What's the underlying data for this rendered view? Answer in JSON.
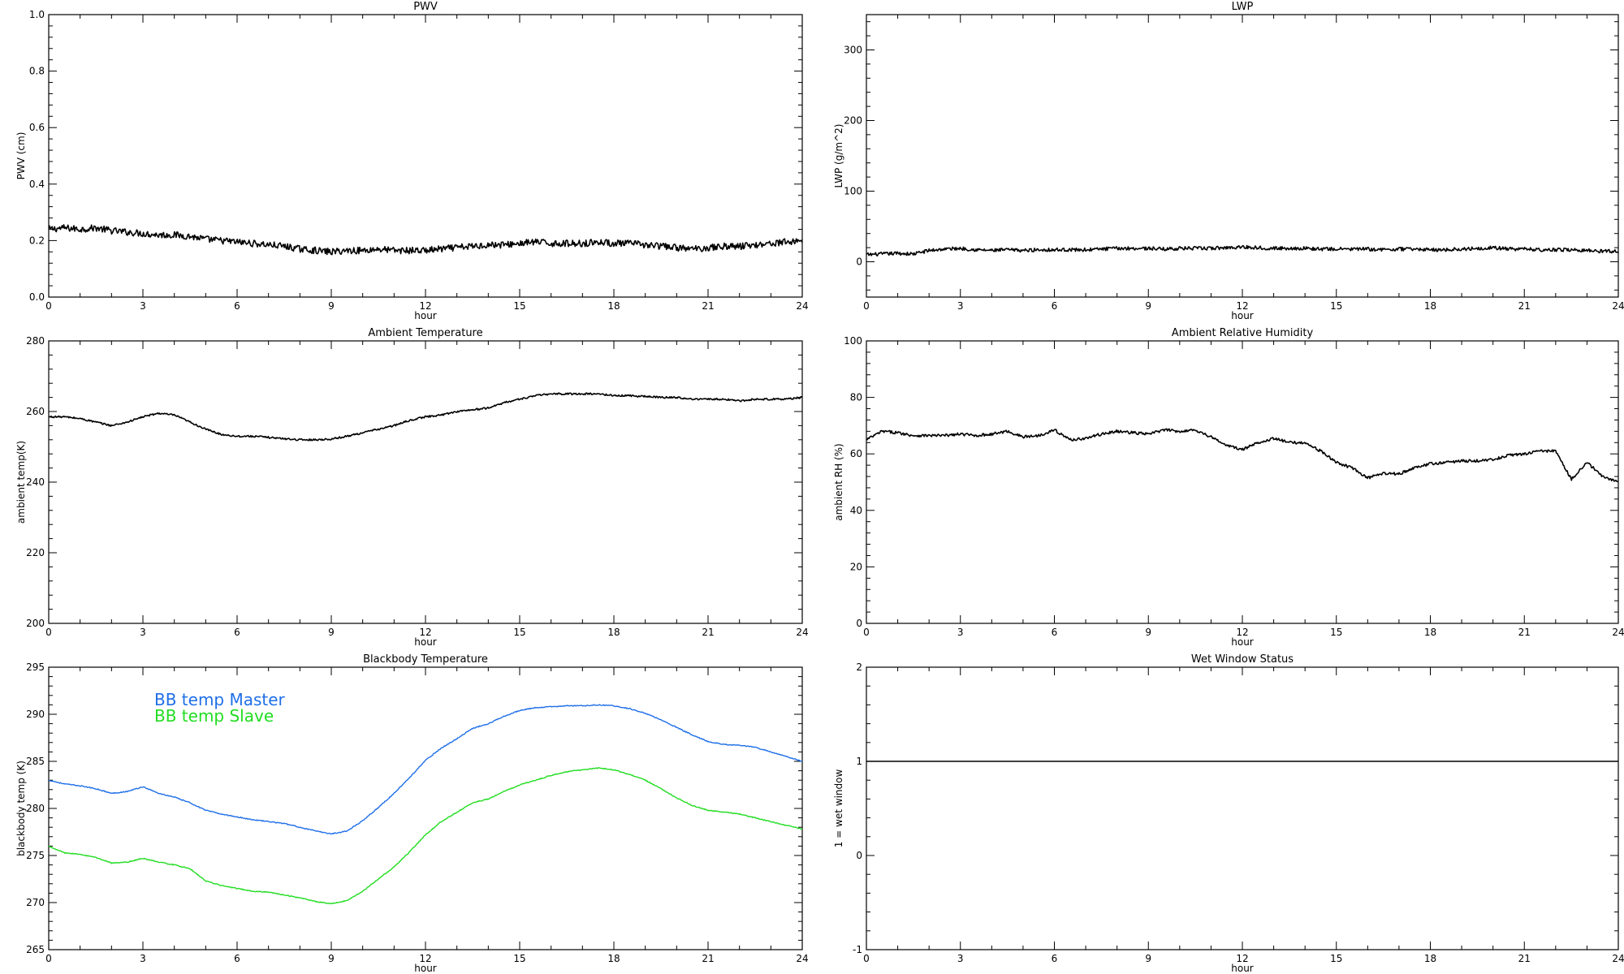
{
  "chart_data": [
    {
      "id": "pwv",
      "type": "line",
      "title": "PWV",
      "xlabel": "hour",
      "ylabel": "PWV (cm)",
      "xlim": [
        0,
        24
      ],
      "ylim": [
        0.0,
        1.0
      ],
      "xticks": [
        0,
        3,
        6,
        9,
        12,
        15,
        18,
        21,
        24
      ],
      "yticks": [
        0.0,
        0.2,
        0.4,
        0.6,
        0.8,
        1.0
      ],
      "ytick_labels": [
        "0.0",
        "0.2",
        "0.4",
        "0.6",
        "0.8",
        "1.0"
      ],
      "noise": 0.012,
      "series": [
        {
          "color": "#000000",
          "x": [
            0,
            0.5,
            1,
            1.5,
            2,
            2.5,
            3,
            3.5,
            4,
            4.5,
            5,
            5.5,
            6,
            6.5,
            7,
            7.5,
            8,
            8.5,
            9,
            9.5,
            10,
            10.5,
            11,
            11.5,
            12,
            12.5,
            13,
            13.5,
            14,
            14.5,
            15,
            15.5,
            16,
            16.5,
            17,
            17.5,
            18,
            18.5,
            19,
            19.5,
            20,
            20.5,
            21,
            21.5,
            22,
            22.5,
            23,
            23.5,
            24
          ],
          "y": [
            0.24,
            0.245,
            0.24,
            0.245,
            0.235,
            0.23,
            0.225,
            0.22,
            0.22,
            0.215,
            0.205,
            0.2,
            0.195,
            0.19,
            0.185,
            0.18,
            0.17,
            0.165,
            0.16,
            0.165,
            0.165,
            0.17,
            0.165,
            0.165,
            0.165,
            0.17,
            0.175,
            0.18,
            0.185,
            0.185,
            0.19,
            0.195,
            0.19,
            0.19,
            0.19,
            0.195,
            0.19,
            0.19,
            0.185,
            0.18,
            0.175,
            0.17,
            0.175,
            0.18,
            0.18,
            0.185,
            0.19,
            0.195,
            0.2
          ]
        }
      ]
    },
    {
      "id": "lwp",
      "type": "line",
      "title": "LWP",
      "xlabel": "hour",
      "ylabel": "LWP (g/m^2)",
      "xlim": [
        0,
        24
      ],
      "ylim": [
        -50,
        350
      ],
      "xticks": [
        0,
        3,
        6,
        9,
        12,
        15,
        18,
        21,
        24
      ],
      "yticks": [
        0,
        100,
        200,
        300
      ],
      "ytick_labels": [
        "0",
        "100",
        "200",
        "300"
      ],
      "noise": 2.5,
      "series": [
        {
          "color": "#000000",
          "x": [
            0,
            0.5,
            1,
            1.5,
            2,
            2.5,
            3,
            3.5,
            4,
            4.5,
            5,
            5.5,
            6,
            6.5,
            7,
            7.5,
            8,
            8.5,
            9,
            9.5,
            10,
            10.5,
            11,
            11.5,
            12,
            12.5,
            13,
            13.5,
            14,
            14.5,
            15,
            15.5,
            16,
            16.5,
            17,
            17.5,
            18,
            18.5,
            19,
            19.5,
            20,
            20.5,
            21,
            21.5,
            22,
            22.5,
            23,
            23.5,
            24
          ],
          "y": [
            10,
            11,
            12,
            11,
            16,
            18,
            19,
            17,
            16,
            17,
            16,
            17,
            17,
            17,
            17,
            18,
            19,
            19,
            19,
            18,
            19,
            19,
            19,
            20,
            21,
            20,
            19,
            19,
            19,
            18,
            18,
            18,
            18,
            17,
            18,
            18,
            17,
            17,
            18,
            19,
            20,
            18,
            18,
            17,
            17,
            17,
            16,
            15,
            15
          ]
        }
      ]
    },
    {
      "id": "ambient-temp",
      "type": "line",
      "title": "Ambient Temperature",
      "xlabel": "hour",
      "ylabel": "ambient temp(K)",
      "xlim": [
        0,
        24
      ],
      "ylim": [
        200,
        280
      ],
      "xticks": [
        0,
        3,
        6,
        9,
        12,
        15,
        18,
        21,
        24
      ],
      "yticks": [
        200,
        220,
        240,
        260,
        280
      ],
      "ytick_labels": [
        "200",
        "220",
        "240",
        "260",
        "280"
      ],
      "noise": 0.25,
      "series": [
        {
          "color": "#000000",
          "x": [
            0,
            0.5,
            1,
            1.5,
            2,
            2.5,
            3,
            3.5,
            4,
            4.5,
            5,
            5.5,
            6,
            6.5,
            7,
            7.5,
            8,
            8.5,
            9,
            9.5,
            10,
            10.5,
            11,
            11.5,
            12,
            12.5,
            13,
            13.5,
            14,
            14.5,
            15,
            15.5,
            16,
            16.5,
            17,
            17.5,
            18,
            18.5,
            19,
            19.5,
            20,
            20.5,
            21,
            21.5,
            22,
            22.5,
            23,
            23.5,
            24
          ],
          "y": [
            258.5,
            258.5,
            258,
            257,
            256,
            257,
            258.5,
            259.5,
            259,
            257,
            255,
            253.5,
            253,
            253,
            252.7,
            252.3,
            252,
            252,
            252.2,
            253,
            254,
            255,
            256,
            257.5,
            258.5,
            259,
            260,
            260.5,
            261,
            262.5,
            263.5,
            264.5,
            265,
            265,
            265,
            265,
            264.5,
            264.5,
            264.3,
            264,
            264,
            263.5,
            263.5,
            263.5,
            263,
            263.5,
            263.5,
            263.5,
            264
          ]
        }
      ]
    },
    {
      "id": "ambient-rh",
      "type": "line",
      "title": "Ambient Relative Humidity",
      "xlabel": "hour",
      "ylabel": "ambient RH (%)",
      "xlim": [
        0,
        24
      ],
      "ylim": [
        0,
        100
      ],
      "xticks": [
        0,
        3,
        6,
        9,
        12,
        15,
        18,
        21,
        24
      ],
      "yticks": [
        0,
        20,
        40,
        60,
        80,
        100
      ],
      "ytick_labels": [
        "0",
        "20",
        "40",
        "60",
        "80",
        "100"
      ],
      "noise": 0.5,
      "series": [
        {
          "color": "#000000",
          "x": [
            0,
            0.5,
            1,
            1.5,
            2,
            2.5,
            3,
            3.5,
            4,
            4.5,
            5,
            5.5,
            6,
            6.5,
            7,
            7.5,
            8,
            8.5,
            9,
            9.5,
            10,
            10.5,
            11,
            11.5,
            12,
            12.5,
            13,
            13.5,
            14,
            14.5,
            15,
            15.5,
            16,
            16.5,
            17,
            17.5,
            18,
            18.5,
            19,
            19.5,
            20,
            20.5,
            21,
            21.5,
            22,
            22.5,
            23,
            23.5,
            24
          ],
          "y": [
            65,
            68,
            67.5,
            66.5,
            66.5,
            66.5,
            67,
            66.5,
            67,
            68,
            66,
            66.5,
            68.5,
            65,
            65.5,
            67,
            68,
            67.5,
            67,
            68.5,
            68,
            68.5,
            66,
            63,
            61.5,
            64,
            65.5,
            64,
            64,
            61,
            57,
            55,
            51.5,
            53,
            53,
            55,
            56.5,
            57,
            57.5,
            57.5,
            58,
            59.5,
            60,
            61,
            61,
            51,
            57,
            52,
            50
          ]
        }
      ]
    },
    {
      "id": "blackbody-temp",
      "type": "line",
      "title": "Blackbody Temperature",
      "xlabel": "hour",
      "ylabel": "blackbody temp (K)",
      "xlim": [
        0,
        24
      ],
      "ylim": [
        265,
        295
      ],
      "xticks": [
        0,
        3,
        6,
        9,
        12,
        15,
        18,
        21,
        24
      ],
      "yticks": [
        265,
        270,
        275,
        280,
        285,
        290,
        295
      ],
      "ytick_labels": [
        "265",
        "270",
        "275",
        "280",
        "285",
        "290",
        "295"
      ],
      "legend": "top-left",
      "noise": 0.05,
      "series": [
        {
          "name": "BB temp Master",
          "color": "#1f6fe8",
          "x": [
            0,
            0.5,
            1,
            1.5,
            2,
            2.5,
            3,
            3.5,
            4,
            4.5,
            5,
            5.5,
            6,
            6.5,
            7,
            7.5,
            8,
            8.5,
            9,
            9.5,
            10,
            10.5,
            11,
            11.5,
            12,
            12.5,
            13,
            13.5,
            14,
            14.5,
            15,
            15.5,
            16,
            16.5,
            17,
            17.5,
            18,
            18.5,
            19,
            19.5,
            20,
            20.5,
            21,
            21.5,
            22,
            22.5,
            23,
            23.5,
            24
          ],
          "y": [
            283,
            282.6,
            282.4,
            282.1,
            281.6,
            281.8,
            282.3,
            281.6,
            281.2,
            280.6,
            279.8,
            279.4,
            279.1,
            278.8,
            278.6,
            278.4,
            278,
            277.6,
            277.3,
            277.6,
            278.7,
            280.1,
            281.6,
            283.3,
            285.1,
            286.4,
            287.4,
            288.5,
            289,
            289.8,
            290.4,
            290.7,
            290.8,
            290.9,
            290.9,
            291,
            290.9,
            290.6,
            290.1,
            289.4,
            288.6,
            287.8,
            287.1,
            286.8,
            286.7,
            286.5,
            286,
            285.5,
            285
          ]
        },
        {
          "name": "BB temp Slave",
          "color": "#22dd22",
          "x": [
            0,
            0.5,
            1,
            1.5,
            2,
            2.5,
            3,
            3.5,
            4,
            4.5,
            5,
            5.5,
            6,
            6.5,
            7,
            7.5,
            8,
            8.5,
            9,
            9.5,
            10,
            10.5,
            11,
            11.5,
            12,
            12.5,
            13,
            13.5,
            14,
            14.5,
            15,
            15.5,
            16,
            16.5,
            17,
            17.5,
            18,
            18.5,
            19,
            19.5,
            20,
            20.5,
            21,
            21.5,
            22,
            22.5,
            23,
            23.5,
            24
          ],
          "y": [
            276,
            275.3,
            275.1,
            274.8,
            274.2,
            274.3,
            274.7,
            274.3,
            274,
            273.6,
            272.3,
            271.8,
            271.5,
            271.2,
            271.1,
            270.8,
            270.5,
            270.1,
            269.9,
            270.2,
            271.2,
            272.5,
            273.8,
            275.4,
            277.2,
            278.6,
            279.6,
            280.6,
            281,
            281.8,
            282.5,
            283,
            283.5,
            283.9,
            284.1,
            284.3,
            284.1,
            283.6,
            283,
            282.1,
            281.1,
            280.3,
            279.8,
            279.6,
            279.4,
            279,
            278.6,
            278.2,
            277.8
          ]
        }
      ]
    },
    {
      "id": "wet-window",
      "type": "line",
      "title": "Wet Window Status",
      "xlabel": "hour",
      "ylabel": "1 = wet window",
      "xlim": [
        0,
        24
      ],
      "ylim": [
        -1,
        2
      ],
      "xticks": [
        0,
        3,
        6,
        9,
        12,
        15,
        18,
        21,
        24
      ],
      "yticks": [
        -1,
        0,
        1,
        2
      ],
      "ytick_labels": [
        "-1",
        "0",
        "1",
        "2"
      ],
      "noise": 0,
      "series": [
        {
          "color": "#000000",
          "x": [
            0,
            24
          ],
          "y": [
            1,
            1
          ]
        }
      ]
    }
  ]
}
